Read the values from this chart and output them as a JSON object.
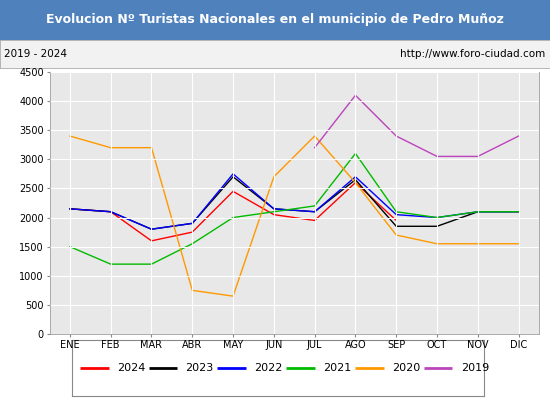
{
  "title": "Evolucion Nº Turistas Nacionales en el municipio de Pedro Muñoz",
  "subtitle_left": "2019 - 2024",
  "subtitle_right": "http://www.foro-ciudad.com",
  "months": [
    "ENE",
    "FEB",
    "MAR",
    "ABR",
    "MAY",
    "JUN",
    "JUL",
    "AGO",
    "SEP",
    "OCT",
    "NOV",
    "DIC"
  ],
  "ylim": [
    0,
    4500
  ],
  "yticks": [
    0,
    500,
    1000,
    1500,
    2000,
    2500,
    3000,
    3500,
    4000,
    4500
  ],
  "series": {
    "2024": {
      "color": "#ff0000",
      "values": [
        2150,
        2100,
        1600,
        1750,
        2450,
        2050,
        1950,
        2600,
        1950,
        null,
        null,
        null
      ]
    },
    "2023": {
      "color": "#000000",
      "values": [
        2150,
        2100,
        1800,
        1900,
        2700,
        2150,
        2100,
        2650,
        1850,
        1850,
        2100,
        2100
      ]
    },
    "2022": {
      "color": "#0000ff",
      "values": [
        2150,
        2100,
        1800,
        1900,
        2750,
        2150,
        2100,
        2700,
        2050,
        2000,
        2100,
        2100
      ]
    },
    "2021": {
      "color": "#00bb00",
      "values": [
        1500,
        1200,
        1200,
        1550,
        2000,
        2100,
        2200,
        3100,
        2100,
        2000,
        2100,
        2100
      ]
    },
    "2020": {
      "color": "#ff9900",
      "values": [
        3400,
        3200,
        3200,
        750,
        650,
        2700,
        3400,
        2600,
        1700,
        1550,
        1550,
        1550
      ]
    },
    "2019": {
      "color": "#bb44bb",
      "values": [
        null,
        null,
        null,
        null,
        null,
        null,
        3200,
        4100,
        3400,
        3050,
        3050,
        3400
      ]
    }
  },
  "legend_order": [
    "2024",
    "2023",
    "2022",
    "2021",
    "2020",
    "2019"
  ],
  "title_bg_color": "#4f81bd",
  "title_font_color": "#ffffff",
  "plot_bg_color": "#e8e8e8",
  "subtitle_bg_color": "#f2f2f2",
  "grid_color": "#ffffff",
  "fig_width": 5.5,
  "fig_height": 4.0,
  "dpi": 100
}
